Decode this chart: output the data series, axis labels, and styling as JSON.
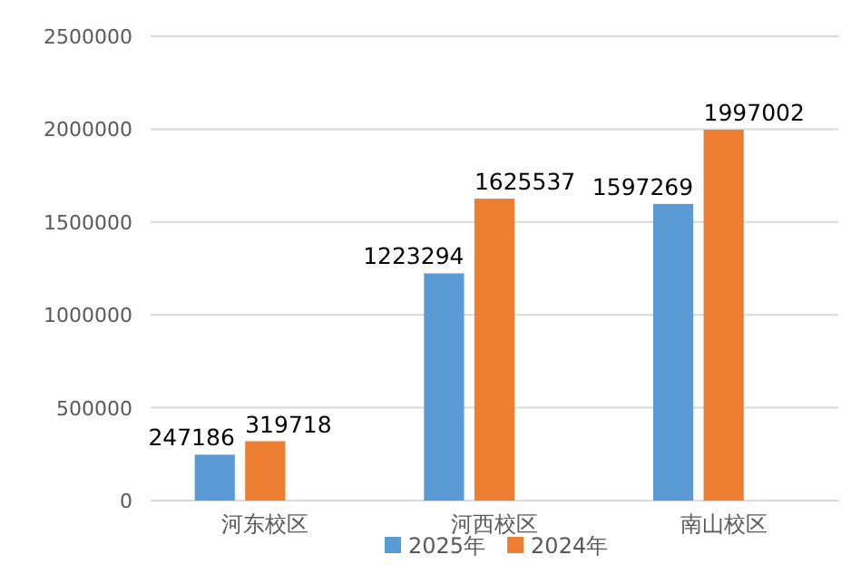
{
  "chart_data": {
    "type": "bar",
    "categories": [
      "河东校区",
      "河西校区",
      "南山校区"
    ],
    "series": [
      {
        "name": "2025年",
        "color": "#5b9bd5",
        "values": [
          247186,
          1223294,
          1597269
        ]
      },
      {
        "name": "2024年",
        "color": "#ed7d31",
        "values": [
          319718,
          1625537,
          1997002
        ]
      }
    ],
    "ylim": [
      0,
      2500000
    ],
    "yticks": [
      0,
      500000,
      1000000,
      1500000,
      2000000,
      2500000
    ],
    "grid": "y",
    "legend": "bottom",
    "data_labels": true
  }
}
